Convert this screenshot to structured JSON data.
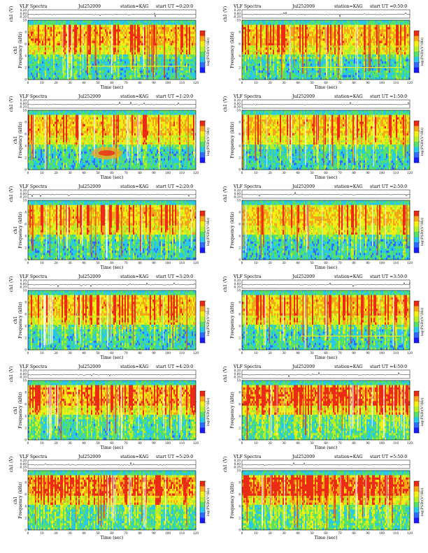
{
  "figure": {
    "spectrum_colors": [
      "#1a1aff",
      "#2f6bff",
      "#29c7e8",
      "#55e06a",
      "#b4ef2a",
      "#f4ee16",
      "#f6a518",
      "#ec2a14"
    ]
  },
  "panels": [
    {
      "title": "VLF Spectra",
      "date": "Jul252009",
      "station": "station=KAG",
      "start": "start UT =0:20:0",
      "ylabel": "ch1 (V)",
      "flabel": "ch1\nFrequency (kHz)",
      "zlabel": "log(PSD)(V²/Hz)",
      "xlabel": "Time (sec)",
      "activity": 0.45,
      "yellow_band": true,
      "blob": false
    },
    {
      "title": "VLF Spectra",
      "date": "Jul252009",
      "station": "station=KAG",
      "start": "start UT =0:50:0",
      "ylabel": "ch1 (V)",
      "flabel": "Frequency (kHz)",
      "zlabel": "log(PSD)(V²/Hz)",
      "xlabel": "Time (sec)",
      "activity": 0.42,
      "yellow_band": true,
      "blob": false
    },
    {
      "title": "VLF Spectra",
      "date": "Jul252009",
      "station": "station=KAG",
      "start": "start UT =1:20:0",
      "ylabel": "ch1 (V)",
      "flabel": "ch1\nFrequency (kHz)",
      "zlabel": "log(PSD)(V²/Hz)",
      "xlabel": "Time (sec)",
      "activity": 0.4,
      "yellow_band": false,
      "blob": true
    },
    {
      "title": "VLF Spectra",
      "date": "Jul252009",
      "station": "station=KAG",
      "start": "start UT =1:50:0",
      "ylabel": "ch1 (V)",
      "flabel": "Frequency (kHz)",
      "zlabel": "log(PSD)(V²/Hz)",
      "xlabel": "Time (sec)",
      "activity": 0.4,
      "yellow_band": false,
      "blob": false
    },
    {
      "title": "VLF Spectra",
      "date": "Jul252009",
      "station": "station=KAG",
      "start": "start UT =2:20:0",
      "ylabel": "ch1 (V)",
      "flabel": "ch1\nFrequency (kHz)",
      "zlabel": "log(PSD)(V²/Hz)",
      "xlabel": "Time (sec)",
      "activity": 0.38,
      "yellow_band": false,
      "blob": false
    },
    {
      "title": "VLF Spectra",
      "date": "Jul252009",
      "station": "station=KAG",
      "start": "start UT =2:50:0",
      "ylabel": "ch1 (V)",
      "flabel": "Frequency (kHz)",
      "zlabel": "log(PSD)(V²/Hz)",
      "xlabel": "Time (sec)",
      "activity": 0.36,
      "yellow_band": false,
      "blob": false
    },
    {
      "title": "VLF Spectra",
      "date": "Jul252009",
      "station": "station=KAG",
      "start": "start UT =3:20:0",
      "ylabel": "ch1 (V)",
      "flabel": "ch1\nFrequency (kHz)",
      "zlabel": "log(PSD)(V²/Hz)",
      "xlabel": "Time (sec)",
      "activity": 0.4,
      "yellow_band": false,
      "blob": false
    },
    {
      "title": "VLF Spectra",
      "date": "Jul252009",
      "station": "station=KAG",
      "start": "start UT =3:50:0",
      "ylabel": "ch1 (V)",
      "flabel": "Frequency (kHz)",
      "zlabel": "log(PSD)(V²/Hz)",
      "xlabel": "Time (sec)",
      "activity": 0.4,
      "yellow_band": true,
      "blob": false
    },
    {
      "title": "VLF Spectra",
      "date": "Jul252009",
      "station": "station=KAG",
      "start": "start UT =4:20:0",
      "ylabel": "ch1 (V)",
      "flabel": "ch1\nFrequency (kHz)",
      "zlabel": "log(PSD)(V²/Hz)",
      "xlabel": "Time (sec)",
      "activity": 0.55,
      "yellow_band": false,
      "blob": false
    },
    {
      "title": "VLF Spectra",
      "date": "Jul252009",
      "station": "station=KAG",
      "start": "start UT =4:50:0",
      "ylabel": "ch1 (V)",
      "flabel": "Frequency (kHz)",
      "zlabel": "log(PSD)(V²/Hz)",
      "xlabel": "Time (sec)",
      "activity": 0.75,
      "yellow_band": false,
      "blob": false
    },
    {
      "title": "VLF Spectra",
      "date": "Jul252009",
      "station": "station=KAG",
      "start": "start UT =5:20:0",
      "ylabel": "ch1 (V)",
      "flabel": "ch1\nFrequency (kHz)",
      "zlabel": "log(PSD)(V²/Hz)",
      "xlabel": "Time (sec)",
      "activity": 0.7,
      "yellow_band": false,
      "blob": false
    },
    {
      "title": "VLF Spectra",
      "date": "Jul252009",
      "station": "station=KAG",
      "start": "start UT =5:50:0",
      "ylabel": "ch1 (V)",
      "flabel": "Frequency (kHz)",
      "zlabel": "log(PSD)(V²/Hz)",
      "xlabel": "Time (sec)",
      "activity": 0.8,
      "yellow_band": false,
      "blob": false
    }
  ],
  "chart_data": {
    "type": "heatmap",
    "x_range": [
      0,
      120
    ],
    "x_ticks": [
      "0",
      "10",
      "20",
      "30",
      "40",
      "50",
      "60",
      "70",
      "80",
      "90",
      "100",
      "110",
      "120"
    ],
    "freq_range_khz": [
      0,
      10
    ],
    "freq_ticks": [
      "0",
      "2",
      "4",
      "6",
      "8",
      "10"
    ],
    "waveform_ylim": [
      -0.2,
      0.2
    ],
    "waveform_ticks": [
      "0.20",
      "0.00",
      "-0.20"
    ],
    "colorbar_ticks": [
      "",
      "",
      "",
      "",
      ""
    ],
    "grid": false
  }
}
